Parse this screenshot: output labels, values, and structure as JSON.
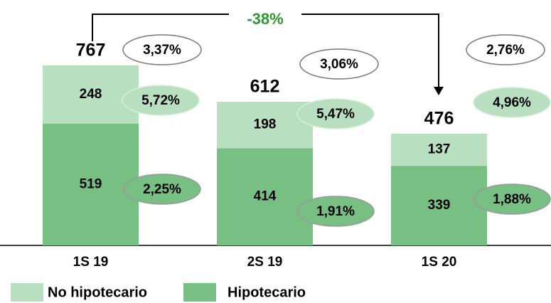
{
  "chart_data": {
    "type": "bar",
    "stacked": true,
    "categories": [
      "1S 19",
      "2S 19",
      "1S 20"
    ],
    "series": [
      {
        "name": "Hipotecario",
        "color": "#78bf84",
        "values": [
          519,
          414,
          339
        ],
        "ratios": [
          2.25,
          1.91,
          1.88
        ],
        "ratio_labels": [
          "2,25%",
          "1,91%",
          "1,88%"
        ]
      },
      {
        "name": "No hipotecario",
        "color": "#b9dfc1",
        "values": [
          248,
          198,
          137
        ],
        "ratios": [
          5.72,
          5.47,
          4.96
        ],
        "ratio_labels": [
          "5,72%",
          "5,47%",
          "4,96%"
        ]
      }
    ],
    "totals": [
      767,
      612,
      476
    ],
    "total_ratios": [
      3.37,
      3.06,
      2.76
    ],
    "total_ratio_labels": [
      "3,37%",
      "3,06%",
      "2,76%"
    ],
    "change_label": "-38%"
  }
}
